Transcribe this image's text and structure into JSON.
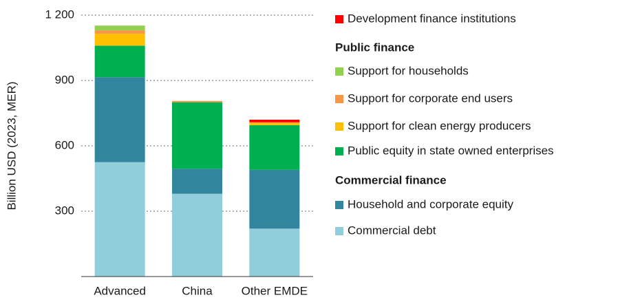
{
  "chart_data": {
    "type": "stacked_bar",
    "y_label": "Billion USD (2023, MER)",
    "categories": [
      "Advanced",
      "China",
      "Other EMDE"
    ],
    "series": [
      {
        "name": "Commercial debt",
        "color": "#92cddc",
        "values": [
          525,
          380,
          220
        ]
      },
      {
        "name": "Household and corporate equity",
        "color": "#31859c",
        "values": [
          390,
          115,
          270
        ]
      },
      {
        "name": "Public equity in state owned enterprises",
        "color": "#00b050",
        "values": [
          145,
          305,
          205
        ]
      },
      {
        "name": "Support for clean energy producers",
        "color": "#ffc000",
        "values": [
          55,
          0,
          10
        ]
      },
      {
        "name": "Support for corporate end users",
        "color": "#f79646",
        "values": [
          15,
          6,
          3
        ]
      },
      {
        "name": "Support for households",
        "color": "#92d050",
        "values": [
          22,
          0,
          0
        ]
      },
      {
        "name": "Development finance institutions",
        "color": "#ff0000",
        "values": [
          0,
          0,
          12
        ]
      }
    ],
    "legend_headings": [
      "Public finance",
      "Commercial finance"
    ],
    "ylim": [
      0,
      1200
    ],
    "yticks": [
      300,
      600,
      900,
      {
        "value": 1200,
        "label": "1 200"
      }
    ],
    "grid": true
  }
}
